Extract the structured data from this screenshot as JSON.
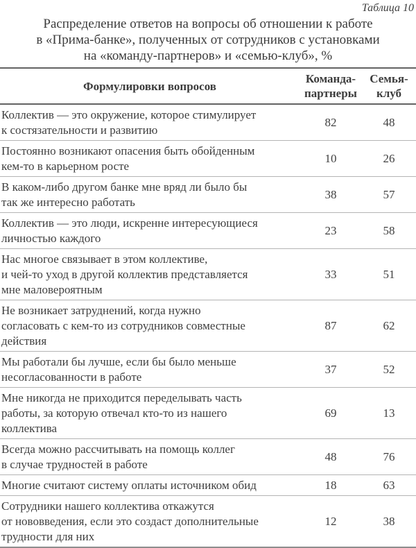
{
  "page": {
    "label": "Таблица 10",
    "title_lines": [
      "Распределение ответов на вопросы об отношении к работе",
      "в «Прима-банке», полученных от сотрудников с установками",
      "на «команду-партнеров» и «семью-клуб», %"
    ],
    "table": {
      "columns": [
        {
          "label": "Формулировки вопросов"
        },
        {
          "lines": [
            "Команда-",
            "партнеры"
          ]
        },
        {
          "lines": [
            "Семья-",
            "клуб"
          ]
        }
      ],
      "rows": [
        {
          "lines": [
            "Коллектив — это окружение, которое стимулирует",
            "к состязательности и развитию"
          ],
          "team": 82,
          "family": 48
        },
        {
          "lines": [
            "Постоянно возникают опасения быть обойденным",
            "кем-то в карьерном росте"
          ],
          "team": 10,
          "family": 26
        },
        {
          "lines": [
            "В каком-либо другом банке мне вряд ли было бы",
            "так же интересно работать"
          ],
          "team": 38,
          "family": 57
        },
        {
          "lines": [
            "Коллектив — это люди, искренне интересующиеся",
            "личностью каждого"
          ],
          "team": 23,
          "family": 58
        },
        {
          "lines": [
            "Нас многое связывает в этом коллективе,",
            "и чей-то уход в другой коллектив представляется",
            "мне маловероятным"
          ],
          "team": 33,
          "family": 51
        },
        {
          "lines": [
            "Не возникает затруднений, когда нужно",
            "согласовать с кем-то из сотрудников совместные",
            "действия"
          ],
          "team": 87,
          "family": 62
        },
        {
          "lines": [
            "Мы работали бы лучше, если бы было меньше",
            "несогласованности в работе"
          ],
          "team": 37,
          "family": 52
        },
        {
          "lines": [
            "Мне никогда не приходится переделывать часть",
            "работы, за которую отвечал кто-то из нашего",
            "коллектива"
          ],
          "team": 69,
          "family": 13
        },
        {
          "lines": [
            "Всегда можно рассчитывать на помощь коллег",
            "в случае трудностей в работе"
          ],
          "team": 48,
          "family": 76
        },
        {
          "lines": [
            "Многие считают систему оплаты источником обид"
          ],
          "team": 18,
          "family": 63
        },
        {
          "lines": [
            "Сотрудники нашего коллектива откажутся",
            "от нововведения, если это создаст дополнительные",
            "трудности для них"
          ],
          "team": 12,
          "family": 38
        }
      ]
    },
    "colors": {
      "text": "#3f3f3f",
      "rule_dark": "#636363",
      "rule_row": "#b4b4b4",
      "rule_bottom": "#8e8e8e",
      "background": "#ffffff"
    }
  }
}
